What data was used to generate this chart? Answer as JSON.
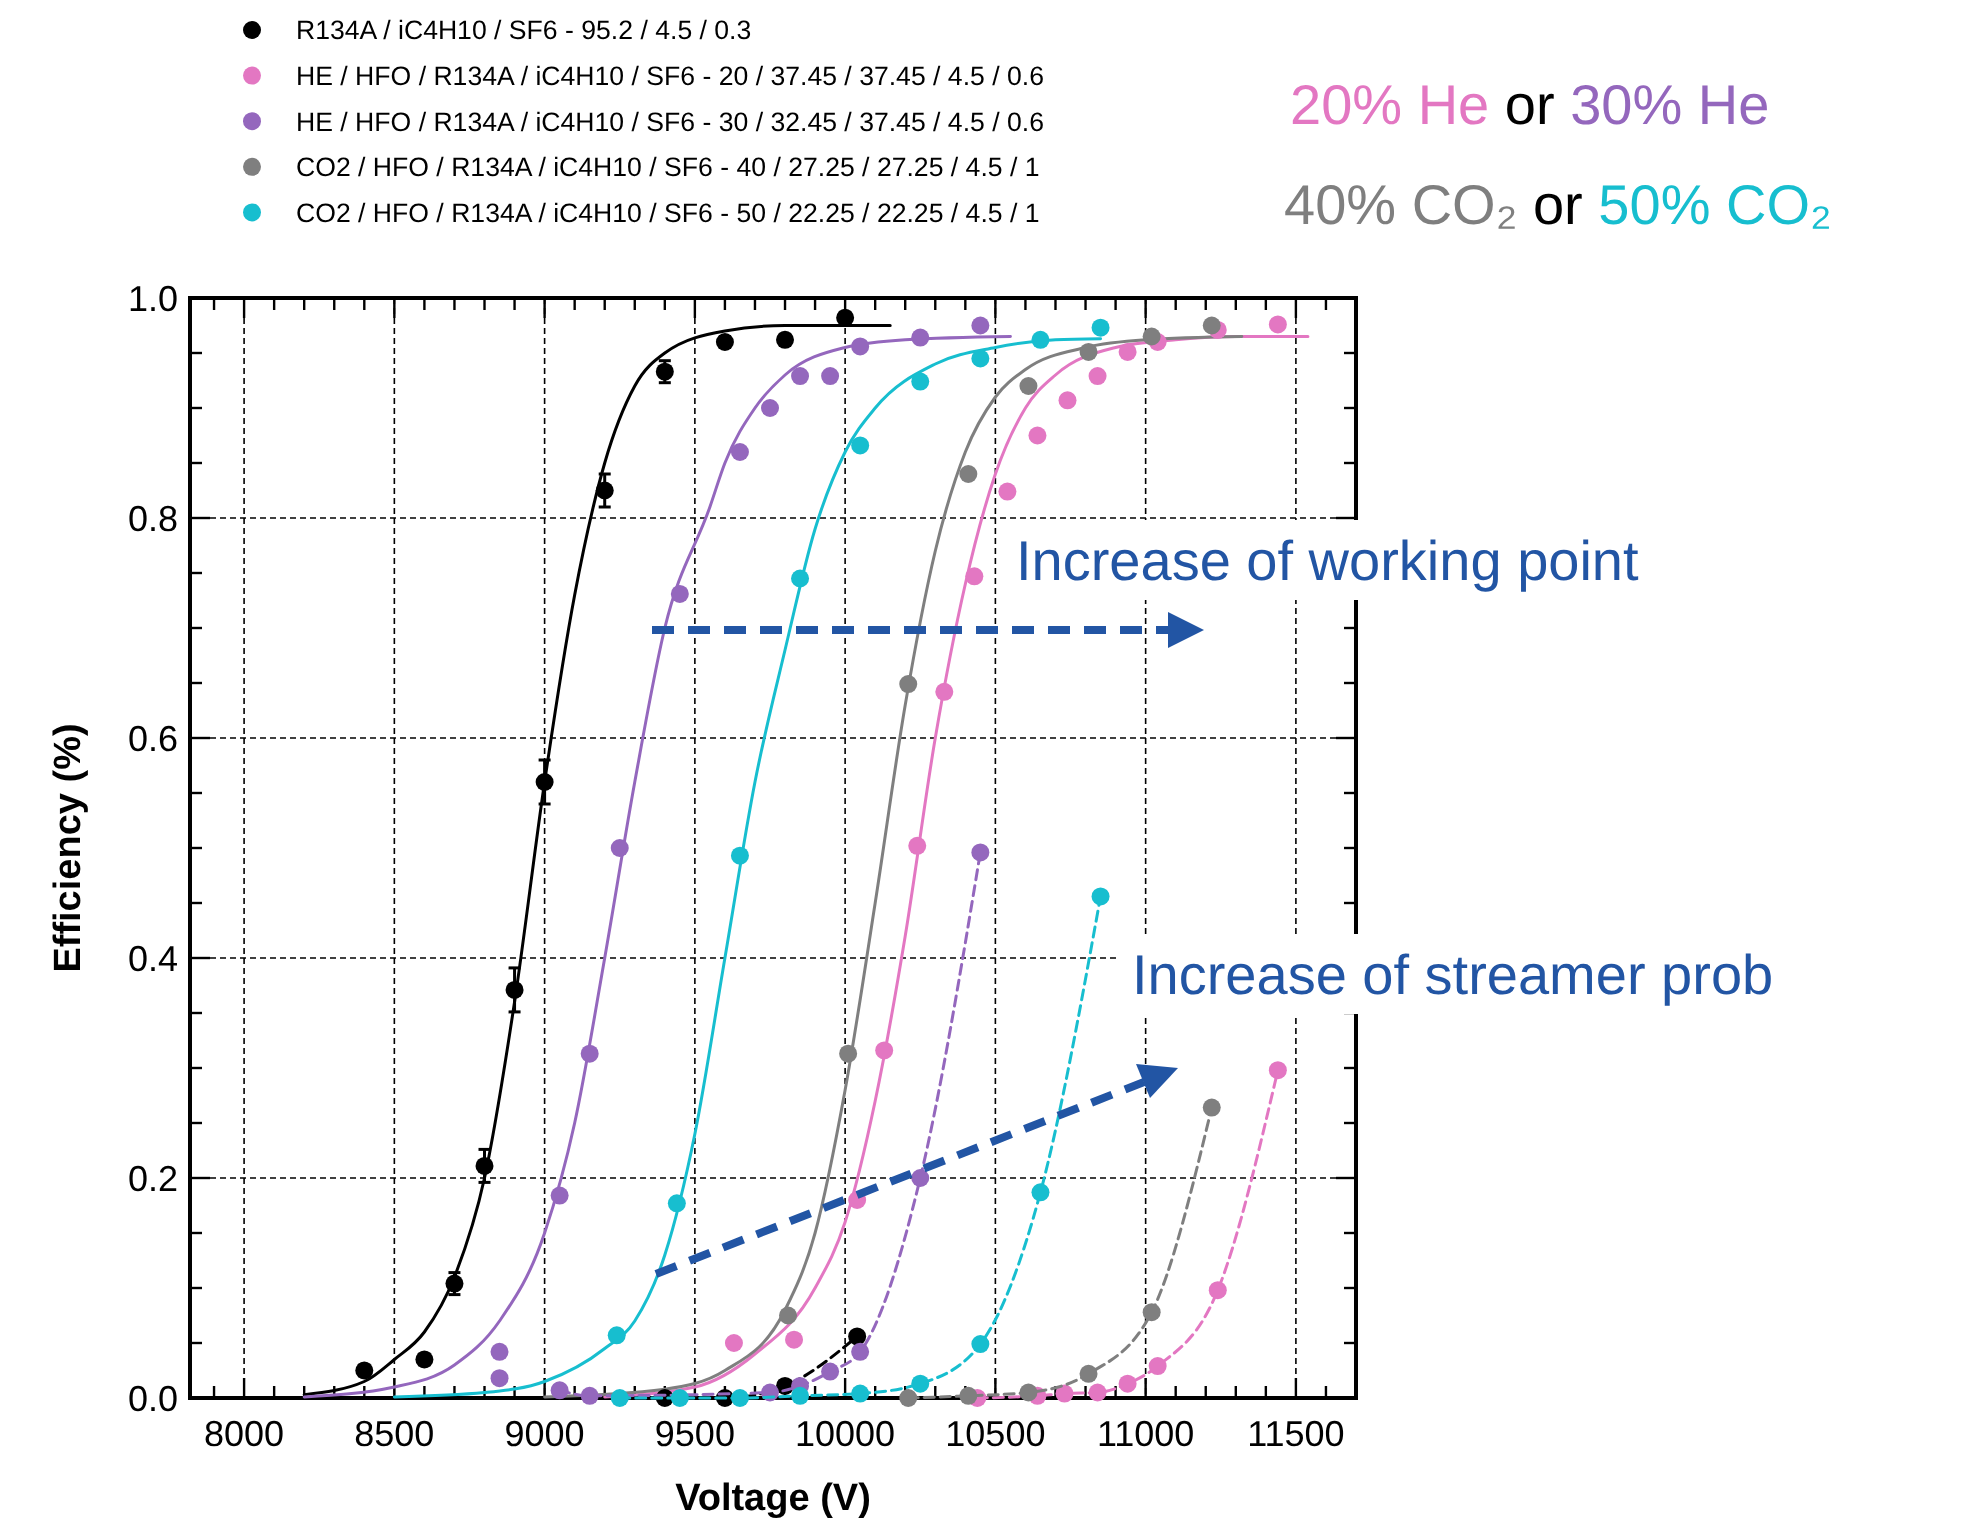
{
  "chart_data": {
    "type": "scatter",
    "xlabel": "Voltage (V)",
    "ylabel": "Efficiency (%)",
    "xlim": [
      7820,
      11700
    ],
    "ylim": [
      0,
      1
    ],
    "xticks": [
      {
        "value": 7900,
        "label": null
      },
      8000,
      {
        "value": 8100,
        "label": null
      },
      {
        "value": 8200,
        "label": null
      },
      {
        "value": 8300,
        "label": null
      },
      {
        "value": 8400,
        "label": null
      },
      8500,
      {
        "value": 8600,
        "label": null
      },
      {
        "value": 8700,
        "label": null
      },
      {
        "value": 8800,
        "label": null
      },
      {
        "value": 8900,
        "label": null
      },
      9000,
      {
        "value": 9100,
        "label": null
      },
      {
        "value": 9200,
        "label": null
      },
      {
        "value": 9300,
        "label": null
      },
      {
        "value": 9400,
        "label": null
      },
      9500,
      {
        "value": 9600,
        "label": null
      },
      {
        "value": 9700,
        "label": null
      },
      {
        "value": 9800,
        "label": null
      },
      {
        "value": 9900,
        "label": null
      },
      10000,
      {
        "value": 10100,
        "label": null
      },
      {
        "value": 10200,
        "label": null
      },
      {
        "value": 10300,
        "label": null
      },
      {
        "value": 10400,
        "label": null
      },
      10500,
      {
        "value": 10600,
        "label": null
      },
      {
        "value": 10700,
        "label": null
      },
      {
        "value": 10800,
        "label": null
      },
      {
        "value": 10900,
        "label": null
      },
      11000,
      {
        "value": 11100,
        "label": null
      },
      {
        "value": 11200,
        "label": null
      },
      {
        "value": 11300,
        "label": null
      },
      {
        "value": 11400,
        "label": null
      },
      11500,
      {
        "value": 11600,
        "label": null
      }
    ],
    "yticks": [
      {
        "value": 0,
        "label": "0.0"
      },
      {
        "value": 0.05,
        "label": null
      },
      {
        "value": 0.1,
        "label": null
      },
      {
        "value": 0.15,
        "label": null
      },
      {
        "value": 0.2,
        "label": "0.2"
      },
      {
        "value": 0.25,
        "label": null
      },
      {
        "value": 0.3,
        "label": null
      },
      {
        "value": 0.35,
        "label": null
      },
      {
        "value": 0.4,
        "label": "0.4"
      },
      {
        "value": 0.45,
        "label": null
      },
      {
        "value": 0.5,
        "label": null
      },
      {
        "value": 0.55,
        "label": null
      },
      {
        "value": 0.6,
        "label": "0.6"
      },
      {
        "value": 0.65,
        "label": null
      },
      {
        "value": 0.7,
        "label": null
      },
      {
        "value": 0.75,
        "label": null
      },
      {
        "value": 0.8,
        "label": "0.8"
      },
      {
        "value": 0.85,
        "label": null
      },
      {
        "value": 0.9,
        "label": null
      },
      {
        "value": 0.95,
        "label": null
      },
      {
        "value": 1,
        "label": "1.0"
      }
    ],
    "grid": true,
    "legend": "top",
    "marker": "circle",
    "series": [
      {
        "name": "R134A / iC4H10 / SF6 -  95.2 / 4.5 / 0.3",
        "color": "#000000",
        "x": [
          8400,
          8600,
          8700,
          8800,
          8900,
          9000,
          9200,
          9400,
          9600,
          9800,
          10000
        ],
        "values": [
          0.025,
          0.035,
          0.104,
          0.211,
          0.371,
          0.56,
          0.825,
          0.933,
          0.96,
          0.962,
          0.982
        ],
        "errors": [
          0.005,
          0.005,
          0.01,
          0.015,
          0.02,
          0.02,
          0.015,
          0.01,
          0.005,
          0.005,
          0.005
        ]
      },
      {
        "name": "HE / HFO / R134A / iC4H10 / SF6 -  20 / 37.45 / 37.45 / 4.5 / 0.6",
        "color": "#e377c2",
        "x": [
          9630,
          9830,
          10040,
          10130,
          10240,
          10330,
          10430,
          10540,
          10640,
          10740,
          10840,
          10940,
          11040,
          11240,
          11440
        ],
        "values": [
          0.05,
          0.053,
          0.18,
          0.316,
          0.502,
          0.642,
          0.747,
          0.824,
          0.875,
          0.907,
          0.929,
          0.951,
          0.96,
          0.971,
          0.976
        ]
      },
      {
        "name": "HE / HFO / R134A / iC4H10 / SF6 -  30 / 32.45 / 37.45 / 4.5 / 0.6",
        "color": "#9467bd",
        "x": [
          8850,
          8850,
          9050,
          9150,
          9250,
          9450,
          9650,
          9750,
          9850,
          9950,
          10050,
          10250,
          10450
        ],
        "values": [
          0.042,
          0.018,
          0.184,
          0.313,
          0.5,
          0.731,
          0.86,
          0.9,
          0.929,
          0.929,
          0.956,
          0.964,
          0.975
        ]
      },
      {
        "name": "CO2 / HFO / R134A / iC4H10 / SF6 -  40 / 27.25 / 27.25 / 4.5 / 1",
        "color": "#7f7f7f",
        "x": [
          9810,
          10010,
          10210,
          10410,
          10610,
          10810,
          11020,
          11220
        ],
        "values": [
          0.075,
          0.313,
          0.649,
          0.84,
          0.92,
          0.951,
          0.965,
          0.975
        ]
      },
      {
        "name": "CO2 / HFO / R134A / iC4H10 / SF6 -  50 / 22.25 / 22.25 / 4.5 / 1",
        "color": "#17becf",
        "x": [
          9240,
          9440,
          9650,
          9850,
          10050,
          10250,
          10450,
          10650,
          10850
        ],
        "values": [
          0.057,
          0.177,
          0.493,
          0.745,
          0.866,
          0.924,
          0.945,
          0.962,
          0.973
        ]
      },
      {
        "color": "#000000",
        "type": "line",
        "marker": "none",
        "x": [
          8200,
          8400,
          8500,
          8600,
          8700,
          8800,
          8900,
          9000,
          9100,
          9200,
          9300,
          9400,
          9600,
          9800,
          10150
        ],
        "values": [
          0.003,
          0.015,
          0.035,
          0.06,
          0.11,
          0.2,
          0.36,
          0.56,
          0.73,
          0.85,
          0.92,
          0.95,
          0.97,
          0.975,
          0.975
        ]
      },
      {
        "color": "#e377c2",
        "type": "line",
        "marker": "none",
        "x": [
          9200,
          9500,
          9700,
          9900,
          10000,
          10100,
          10200,
          10300,
          10400,
          10500,
          10600,
          10700,
          10900,
          11100,
          11300,
          11540
        ],
        "values": [
          0.001,
          0.01,
          0.04,
          0.1,
          0.16,
          0.27,
          0.42,
          0.6,
          0.74,
          0.84,
          0.9,
          0.93,
          0.955,
          0.962,
          0.965,
          0.965
        ]
      },
      {
        "color": "#9467bd",
        "type": "line",
        "marker": "none",
        "x": [
          8200,
          8500,
          8700,
          8850,
          9000,
          9100,
          9200,
          9300,
          9400,
          9550,
          9600,
          9700,
          9800,
          10000,
          10200,
          10550
        ],
        "values": [
          0.001,
          0.01,
          0.03,
          0.07,
          0.15,
          0.25,
          0.4,
          0.56,
          0.7,
          0.81,
          0.85,
          0.9,
          0.93,
          0.955,
          0.962,
          0.965
        ]
      },
      {
        "color": "#7f7f7f",
        "type": "line",
        "marker": "none",
        "x": [
          9000,
          9400,
          9600,
          9800,
          9900,
          10000,
          10100,
          10200,
          10300,
          10400,
          10500,
          10600,
          10800,
          11000,
          11320
        ],
        "values": [
          0.001,
          0.008,
          0.025,
          0.08,
          0.15,
          0.28,
          0.45,
          0.63,
          0.77,
          0.86,
          0.91,
          0.935,
          0.955,
          0.962,
          0.965
        ]
      },
      {
        "color": "#17becf",
        "type": "line",
        "marker": "none",
        "x": [
          8500,
          8800,
          9000,
          9200,
          9300,
          9400,
          9500,
          9600,
          9700,
          9800,
          9900,
          10000,
          10100,
          10300,
          10500,
          10700,
          10850
        ],
        "values": [
          0.001,
          0.005,
          0.015,
          0.045,
          0.07,
          0.13,
          0.24,
          0.4,
          0.56,
          0.68,
          0.79,
          0.86,
          0.9,
          0.94,
          0.955,
          0.962,
          0.963
        ]
      },
      {
        "color": "#000000",
        "type": "line",
        "line_style": "dashed",
        "marker": "circle",
        "x": [
          9400,
          9600,
          9800,
          10040
        ],
        "values": [
          0,
          0,
          0.011,
          0.056
        ]
      },
      {
        "color": "#e377c2",
        "type": "line",
        "line_style": "dashed",
        "marker": "circle",
        "x": [
          10440,
          10640,
          10730,
          10840,
          10940,
          11040,
          11240,
          11440
        ],
        "values": [
          0,
          0.002,
          0.004,
          0.005,
          0.013,
          0.029,
          0.098,
          0.298
        ]
      },
      {
        "color": "#9467bd",
        "type": "line",
        "line_style": "dashed",
        "marker": "circle",
        "x": [
          9050,
          9150,
          9750,
          9850,
          9950,
          10050,
          10250,
          10450
        ],
        "values": [
          0.007,
          0.002,
          0.005,
          0.011,
          0.024,
          0.042,
          0.2,
          0.496
        ]
      },
      {
        "color": "#7f7f7f",
        "type": "line",
        "line_style": "dashed",
        "marker": "circle",
        "x": [
          10210,
          10410,
          10610,
          10810,
          11020,
          11220
        ],
        "values": [
          0,
          0.002,
          0.005,
          0.022,
          0.078,
          0.264
        ]
      },
      {
        "color": "#17becf",
        "type": "line",
        "line_style": "dashed",
        "marker": "circle",
        "x": [
          9250,
          9450,
          9650,
          9850,
          10050,
          10250,
          10450,
          10650,
          10850
        ],
        "values": [
          0,
          0,
          0,
          0.002,
          0.004,
          0.013,
          0.049,
          0.187,
          0.456
        ]
      }
    ],
    "annotations": [
      "Increase of working point",
      "Increase of streamer prob",
      "20% He or 30% He",
      "40% CO₂ or 50% CO₂"
    ]
  }
}
